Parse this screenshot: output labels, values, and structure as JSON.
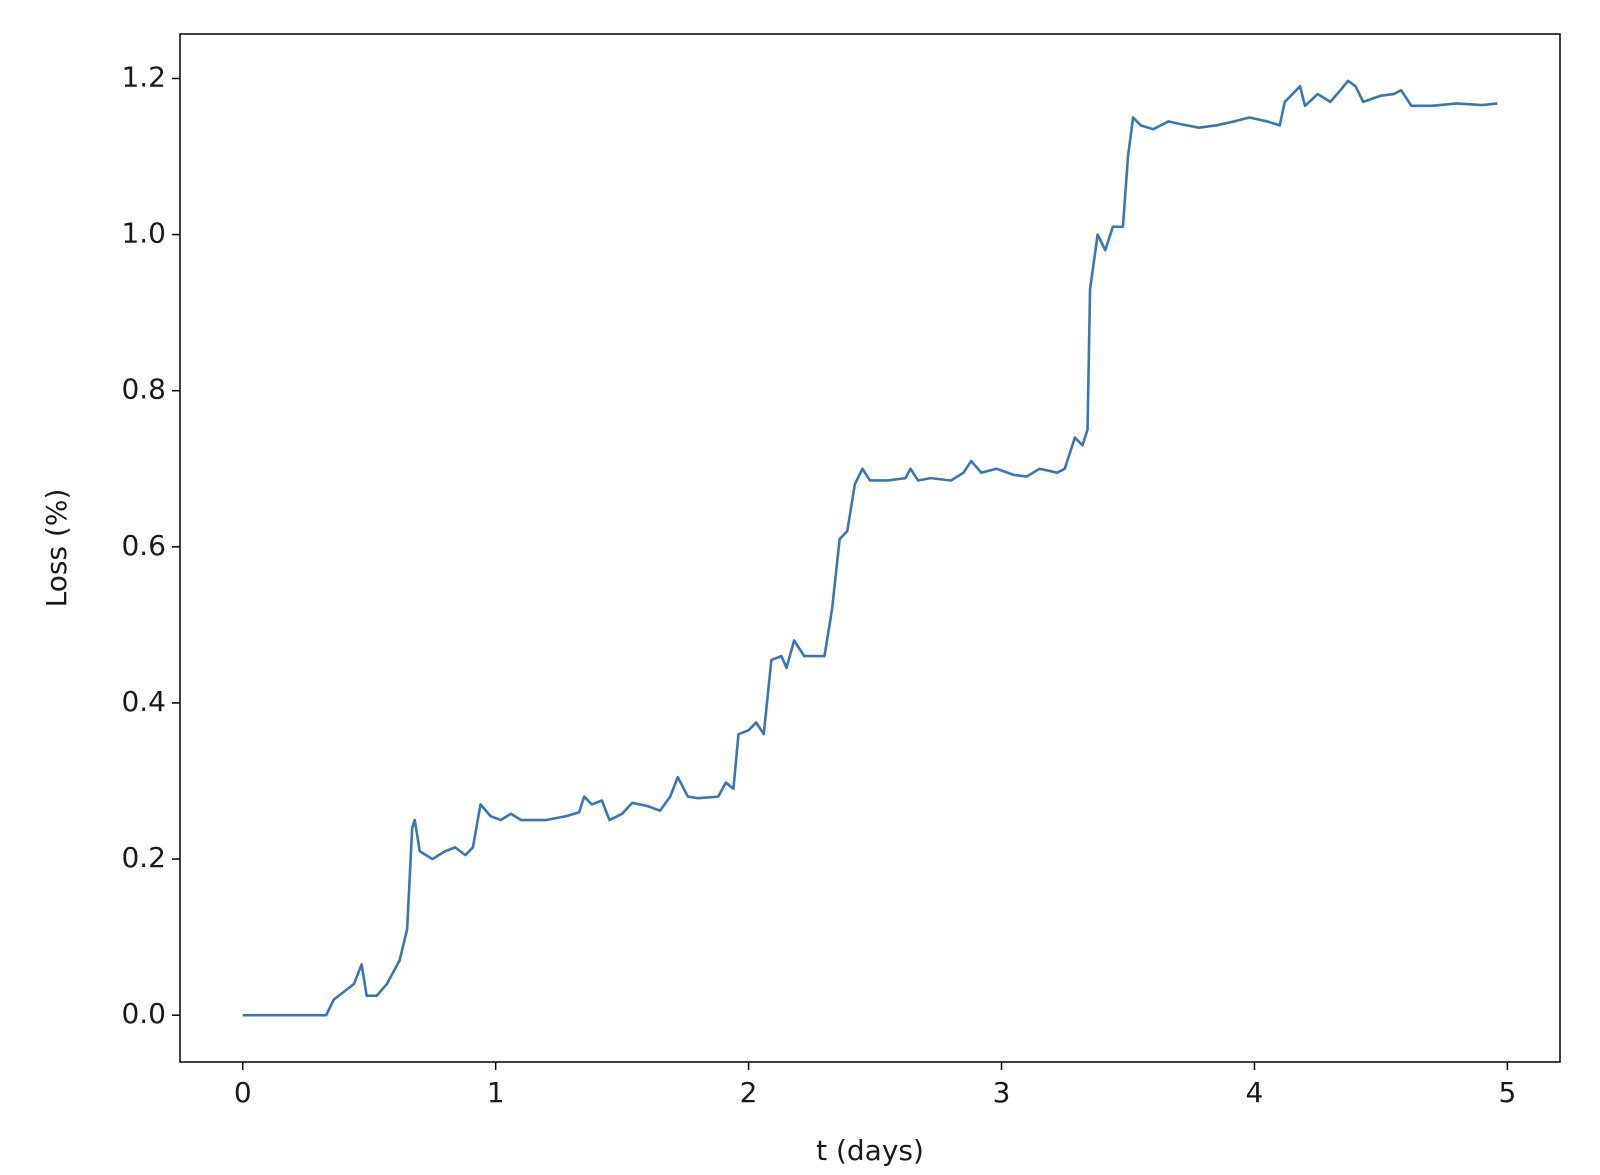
{
  "chart_data": {
    "type": "line",
    "xlabel": "t (days)",
    "ylabel": "Loss (%)",
    "x": [
      0,
      0.33,
      0.36,
      0.4,
      0.44,
      0.47,
      0.49,
      0.53,
      0.57,
      0.62,
      0.65,
      0.67,
      0.68,
      0.7,
      0.75,
      0.8,
      0.84,
      0.88,
      0.91,
      0.94,
      0.98,
      1.02,
      1.06,
      1.1,
      1.2,
      1.28,
      1.33,
      1.35,
      1.38,
      1.42,
      1.45,
      1.5,
      1.54,
      1.6,
      1.65,
      1.69,
      1.72,
      1.76,
      1.8,
      1.88,
      1.91,
      1.94,
      1.96,
      2.0,
      2.03,
      2.06,
      2.09,
      2.13,
      2.15,
      2.18,
      2.22,
      2.3,
      2.33,
      2.36,
      2.39,
      2.42,
      2.45,
      2.48,
      2.55,
      2.62,
      2.64,
      2.67,
      2.72,
      2.8,
      2.85,
      2.88,
      2.92,
      2.98,
      3.05,
      3.1,
      3.15,
      3.22,
      3.25,
      3.29,
      3.32,
      3.34,
      3.35,
      3.38,
      3.41,
      3.44,
      3.48,
      3.5,
      3.52,
      3.55,
      3.6,
      3.66,
      3.7,
      3.78,
      3.85,
      3.92,
      3.98,
      4.05,
      4.1,
      4.12,
      4.15,
      4.18,
      4.2,
      4.25,
      4.3,
      4.34,
      4.37,
      4.4,
      4.43,
      4.5,
      4.55,
      4.58,
      4.62,
      4.7,
      4.8,
      4.9,
      4.96
    ],
    "values": [
      0,
      0,
      0.02,
      0.03,
      0.04,
      0.065,
      0.025,
      0.025,
      0.04,
      0.07,
      0.11,
      0.24,
      0.25,
      0.21,
      0.2,
      0.21,
      0.215,
      0.205,
      0.215,
      0.27,
      0.255,
      0.25,
      0.258,
      0.25,
      0.25,
      0.255,
      0.26,
      0.28,
      0.27,
      0.275,
      0.25,
      0.258,
      0.272,
      0.268,
      0.262,
      0.28,
      0.305,
      0.28,
      0.278,
      0.28,
      0.298,
      0.29,
      0.36,
      0.365,
      0.375,
      0.36,
      0.455,
      0.46,
      0.445,
      0.48,
      0.46,
      0.46,
      0.52,
      0.61,
      0.62,
      0.68,
      0.7,
      0.685,
      0.685,
      0.688,
      0.7,
      0.685,
      0.688,
      0.685,
      0.695,
      0.71,
      0.695,
      0.7,
      0.692,
      0.69,
      0.7,
      0.695,
      0.7,
      0.74,
      0.73,
      0.75,
      0.93,
      1.0,
      0.98,
      1.01,
      1.01,
      1.1,
      1.15,
      1.14,
      1.135,
      1.145,
      1.142,
      1.137,
      1.14,
      1.145,
      1.15,
      1.145,
      1.14,
      1.17,
      1.18,
      1.19,
      1.165,
      1.18,
      1.17,
      1.185,
      1.197,
      1.19,
      1.17,
      1.178,
      1.18,
      1.185,
      1.165,
      1.165,
      1.168,
      1.166,
      1.168
    ],
    "color": "#3a76b5",
    "xlim": [
      -0.248,
      5.208
    ],
    "xticks": [
      0,
      1,
      2,
      3,
      4,
      5
    ],
    "ylim": [
      -0.06,
      1.257
    ],
    "yticks": [
      {
        "value": 0,
        "label": "0.0"
      },
      0.2,
      0.4,
      0.6,
      0.8,
      {
        "value": 1,
        "label": "1.0"
      },
      1.2
    ],
    "grid": false
  }
}
